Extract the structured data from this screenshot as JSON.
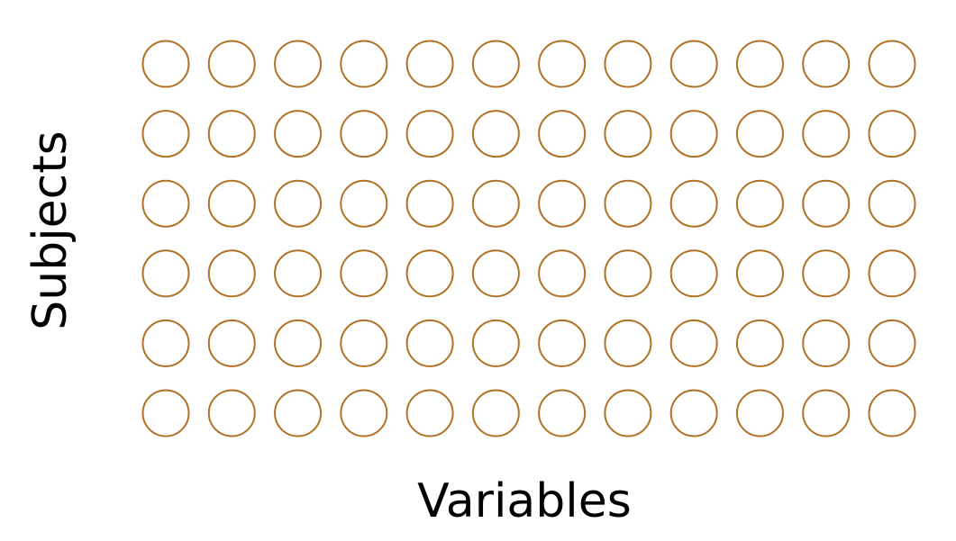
{
  "diagram": {
    "rows": 6,
    "columns": 12,
    "y_label": "Subjects",
    "x_label": "Variables",
    "circle_color": "#B07125",
    "background": "#FFFFFF",
    "text_color": "#000000",
    "shape": "circle-outline"
  }
}
